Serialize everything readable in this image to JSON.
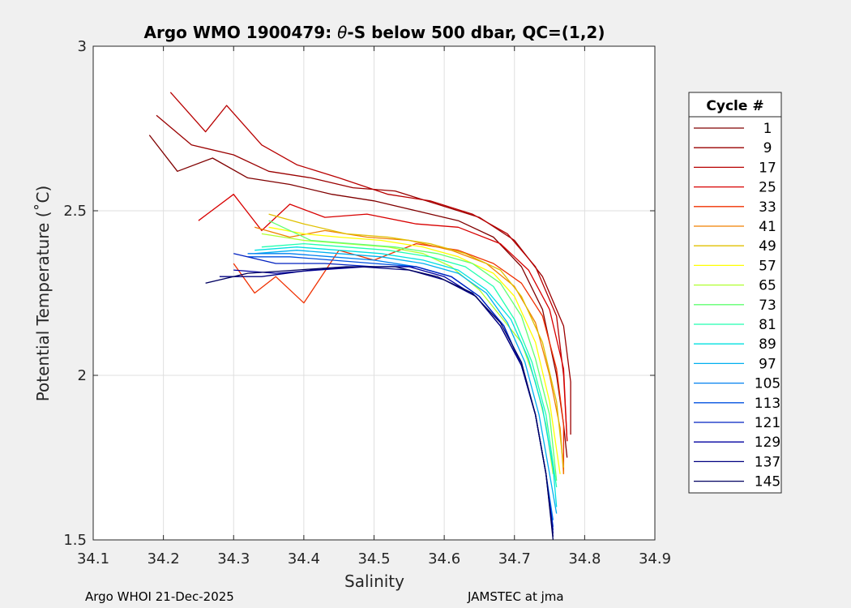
{
  "chart_data": {
    "type": "line",
    "title_prefix": "Argo WMO 1900479: ",
    "title_theta": "θ",
    "title_suffix": "-S below 500 dbar,  QC=(1,2)",
    "xlabel": "Salinity",
    "ylabel": "Potential Temperature (˚C)",
    "xlim": [
      34.1,
      34.9
    ],
    "ylim": [
      1.5,
      3.0
    ],
    "xticks": [
      34.1,
      34.2,
      34.3,
      34.4,
      34.5,
      34.6,
      34.7,
      34.8,
      34.9
    ],
    "xtick_labels": [
      "34.1",
      "34.2",
      "34.3",
      "34.4",
      "34.5",
      "34.6",
      "34.7",
      "34.8",
      "34.9"
    ],
    "yticks": [
      1.5,
      2.0,
      2.5,
      3.0
    ],
    "ytick_labels": [
      "1.5",
      "2",
      "2.5",
      "3"
    ],
    "grid": true,
    "legend": {
      "title": "Cycle #",
      "placement": "outside-right",
      "entries": [
        {
          "label": "1",
          "color": "#800000"
        },
        {
          "label": "9",
          "color": "#9a0000"
        },
        {
          "label": "17",
          "color": "#b80000"
        },
        {
          "label": "25",
          "color": "#d80000"
        },
        {
          "label": "33",
          "color": "#f03000"
        },
        {
          "label": "41",
          "color": "#f08000"
        },
        {
          "label": "49",
          "color": "#e0c000"
        },
        {
          "label": "57",
          "color": "#ffff00"
        },
        {
          "label": "65",
          "color": "#b0ff30"
        },
        {
          "label": "73",
          "color": "#60ff70"
        },
        {
          "label": "81",
          "color": "#20ffb0"
        },
        {
          "label": "89",
          "color": "#00e0e0"
        },
        {
          "label": "97",
          "color": "#00b0f0"
        },
        {
          "label": "105",
          "color": "#0080f0"
        },
        {
          "label": "113",
          "color": "#0050e0"
        },
        {
          "label": "121",
          "color": "#0020c0"
        },
        {
          "label": "129",
          "color": "#0000a0"
        },
        {
          "label": "137",
          "color": "#000080"
        },
        {
          "label": "145",
          "color": "#000060"
        }
      ]
    },
    "series": [
      {
        "name": "1",
        "color": "#800000",
        "x": [
          34.18,
          34.22,
          34.27,
          34.32,
          34.38,
          34.44,
          34.5,
          34.56,
          34.62,
          34.67,
          34.71,
          34.74,
          34.76,
          34.77,
          34.775
        ],
        "y": [
          2.73,
          2.62,
          2.66,
          2.6,
          2.58,
          2.55,
          2.53,
          2.5,
          2.47,
          2.42,
          2.33,
          2.2,
          2.0,
          1.85,
          1.75
        ]
      },
      {
        "name": "9",
        "color": "#9a0000",
        "x": [
          34.19,
          34.24,
          34.3,
          34.35,
          34.41,
          34.47,
          34.53,
          34.59,
          34.65,
          34.7,
          34.74,
          34.77,
          34.78,
          34.78
        ],
        "y": [
          2.79,
          2.7,
          2.67,
          2.62,
          2.6,
          2.57,
          2.56,
          2.52,
          2.48,
          2.41,
          2.3,
          2.15,
          1.98,
          1.82
        ]
      },
      {
        "name": "17",
        "color": "#b80000",
        "x": [
          34.21,
          34.26,
          34.29,
          34.34,
          34.39,
          34.45,
          34.52,
          34.58,
          34.64,
          34.69,
          34.73,
          34.76,
          34.77,
          34.775
        ],
        "y": [
          2.86,
          2.74,
          2.82,
          2.7,
          2.64,
          2.6,
          2.55,
          2.53,
          2.49,
          2.43,
          2.33,
          2.18,
          2.0,
          1.8
        ]
      },
      {
        "name": "25",
        "color": "#d80000",
        "x": [
          34.25,
          34.3,
          34.34,
          34.38,
          34.43,
          34.49,
          34.56,
          34.62,
          34.68,
          34.72,
          34.75,
          34.77,
          34.775
        ],
        "y": [
          2.47,
          2.55,
          2.44,
          2.52,
          2.48,
          2.49,
          2.46,
          2.45,
          2.4,
          2.32,
          2.2,
          2.02,
          1.8
        ]
      },
      {
        "name": "33",
        "color": "#f03000",
        "x": [
          34.3,
          34.33,
          34.36,
          34.4,
          34.45,
          34.5,
          34.56,
          34.62,
          34.67,
          34.71,
          34.74,
          34.76,
          34.77,
          34.77
        ],
        "y": [
          2.34,
          2.25,
          2.3,
          2.22,
          2.38,
          2.35,
          2.4,
          2.38,
          2.34,
          2.28,
          2.18,
          2.02,
          1.85,
          1.7
        ]
      },
      {
        "name": "41",
        "color": "#f08000",
        "x": [
          34.33,
          34.38,
          34.43,
          34.49,
          34.55,
          34.61,
          34.66,
          34.7,
          34.73,
          34.75,
          34.765,
          34.77
        ],
        "y": [
          2.45,
          2.42,
          2.44,
          2.42,
          2.41,
          2.38,
          2.34,
          2.27,
          2.16,
          2.0,
          1.84,
          1.7
        ]
      },
      {
        "name": "49",
        "color": "#e0c000",
        "x": [
          34.35,
          34.4,
          34.46,
          34.52,
          34.58,
          34.63,
          34.68,
          34.71,
          34.74,
          34.76,
          34.77
        ],
        "y": [
          2.49,
          2.46,
          2.43,
          2.42,
          2.4,
          2.37,
          2.32,
          2.24,
          2.1,
          1.92,
          1.72
        ]
      },
      {
        "name": "57",
        "color": "#ffff00",
        "x": [
          34.35,
          34.4,
          34.45,
          34.51,
          34.57,
          34.62,
          34.67,
          34.7,
          34.73,
          34.75,
          34.765
        ],
        "y": [
          2.45,
          2.43,
          2.42,
          2.41,
          2.39,
          2.36,
          2.31,
          2.24,
          2.1,
          1.92,
          1.7
        ]
      },
      {
        "name": "65",
        "color": "#b0ff30",
        "x": [
          34.34,
          34.4,
          34.46,
          34.52,
          34.57,
          34.61,
          34.65,
          34.68,
          34.71,
          34.73,
          34.745,
          34.755
        ],
        "y": [
          2.43,
          2.41,
          2.4,
          2.39,
          2.37,
          2.33,
          2.26,
          2.18,
          2.1,
          1.98,
          1.85,
          1.7
        ]
      },
      {
        "name": "73",
        "color": "#60ff70",
        "x": [
          34.35,
          34.41,
          34.47,
          34.53,
          34.59,
          34.64,
          34.68,
          34.71,
          34.73,
          34.75,
          34.76
        ],
        "y": [
          2.47,
          2.41,
          2.4,
          2.39,
          2.37,
          2.34,
          2.28,
          2.18,
          2.05,
          1.88,
          1.68
        ]
      },
      {
        "name": "81",
        "color": "#20ffb0",
        "x": [
          34.34,
          34.4,
          34.46,
          34.52,
          34.58,
          34.63,
          34.67,
          34.7,
          34.725,
          34.745,
          34.76
        ],
        "y": [
          2.39,
          2.4,
          2.39,
          2.38,
          2.36,
          2.33,
          2.27,
          2.17,
          2.04,
          1.88,
          1.66
        ]
      },
      {
        "name": "89",
        "color": "#00e0e0",
        "x": [
          34.33,
          34.39,
          34.45,
          34.51,
          34.57,
          34.62,
          34.66,
          34.695,
          34.72,
          34.74,
          34.755,
          34.76
        ],
        "y": [
          2.38,
          2.39,
          2.38,
          2.37,
          2.35,
          2.32,
          2.26,
          2.17,
          2.05,
          1.9,
          1.72,
          1.6
        ]
      },
      {
        "name": "97",
        "color": "#00b0f0",
        "x": [
          34.33,
          34.39,
          34.45,
          34.51,
          34.57,
          34.62,
          34.66,
          34.69,
          34.715,
          34.735,
          34.75,
          34.76
        ],
        "y": [
          2.37,
          2.38,
          2.37,
          2.36,
          2.34,
          2.31,
          2.25,
          2.16,
          2.04,
          1.88,
          1.7,
          1.58
        ]
      },
      {
        "name": "105",
        "color": "#0080f0",
        "x": [
          34.32,
          34.38,
          34.44,
          34.5,
          34.56,
          34.61,
          34.65,
          34.685,
          34.71,
          34.73,
          34.745,
          34.755
        ],
        "y": [
          2.37,
          2.37,
          2.36,
          2.35,
          2.33,
          2.3,
          2.24,
          2.15,
          2.03,
          1.88,
          1.7,
          1.56
        ]
      },
      {
        "name": "113",
        "color": "#0050e0",
        "x": [
          34.32,
          34.38,
          34.44,
          34.5,
          34.56,
          34.61,
          34.65,
          34.685,
          34.71,
          34.73,
          34.745,
          34.755
        ],
        "y": [
          2.36,
          2.36,
          2.35,
          2.34,
          2.33,
          2.3,
          2.24,
          2.15,
          2.03,
          1.88,
          1.7,
          1.54
        ]
      },
      {
        "name": "121",
        "color": "#0020c0",
        "x": [
          34.3,
          34.36,
          34.43,
          34.5,
          34.56,
          34.61,
          34.65,
          34.685,
          34.71,
          34.73,
          34.745,
          34.755
        ],
        "y": [
          2.37,
          2.34,
          2.34,
          2.33,
          2.33,
          2.3,
          2.24,
          2.15,
          2.03,
          1.88,
          1.7,
          1.53
        ]
      },
      {
        "name": "129",
        "color": "#0000a0",
        "x": [
          34.3,
          34.36,
          34.42,
          34.49,
          34.55,
          34.6,
          34.645,
          34.68,
          34.71,
          34.73,
          34.745,
          34.755
        ],
        "y": [
          2.32,
          2.31,
          2.32,
          2.33,
          2.33,
          2.3,
          2.24,
          2.15,
          2.03,
          1.88,
          1.7,
          1.52
        ]
      },
      {
        "name": "137",
        "color": "#000080",
        "x": [
          34.28,
          34.34,
          34.41,
          34.48,
          34.55,
          34.6,
          34.645,
          34.68,
          34.71,
          34.73,
          34.745,
          34.755
        ],
        "y": [
          2.3,
          2.3,
          2.32,
          2.33,
          2.32,
          2.29,
          2.24,
          2.15,
          2.03,
          1.88,
          1.7,
          1.51
        ]
      },
      {
        "name": "145",
        "color": "#000060",
        "x": [
          34.26,
          34.32,
          34.39,
          34.46,
          34.53,
          34.59,
          34.64,
          34.68,
          34.71,
          34.73,
          34.745,
          34.755
        ],
        "y": [
          2.28,
          2.31,
          2.32,
          2.33,
          2.33,
          2.3,
          2.25,
          2.16,
          2.04,
          1.88,
          1.7,
          1.5
        ]
      }
    ]
  },
  "footer": {
    "left": "Argo WHOI 21-Dec-2025",
    "right": "JAMSTEC at jma"
  }
}
